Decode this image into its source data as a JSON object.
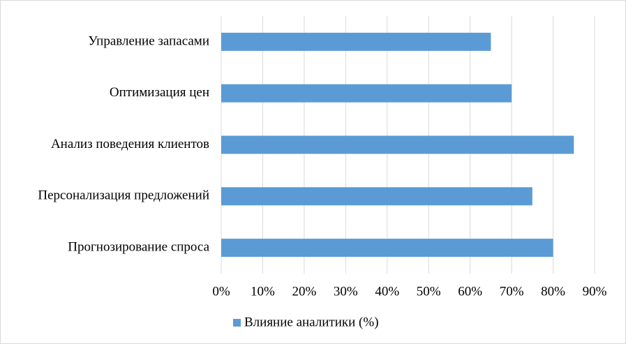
{
  "chart_data": {
    "type": "barh",
    "categories": [
      "Управление запасами",
      "Оптимизация цен",
      "Анализ поведения клиентов",
      "Персонализация предложений",
      "Прогнозирование спроса"
    ],
    "series": [
      {
        "name": "Влияние аналитики (%)",
        "color": "#5b9bd5",
        "values": [
          65,
          70,
          85,
          75,
          80
        ]
      }
    ],
    "xlim": [
      0,
      90
    ],
    "xticks": [
      {
        "value": 0,
        "label": "0%"
      },
      {
        "value": 10,
        "label": "10%"
      },
      {
        "value": 20,
        "label": "20%"
      },
      {
        "value": 30,
        "label": "30%"
      },
      {
        "value": 40,
        "label": "40%"
      },
      {
        "value": 50,
        "label": "50%"
      },
      {
        "value": 60,
        "label": "60%"
      },
      {
        "value": 70,
        "label": "70%"
      },
      {
        "value": 80,
        "label": "80%"
      },
      {
        "value": 90,
        "label": "90%"
      }
    ],
    "grid": true,
    "legend": "bottom"
  }
}
